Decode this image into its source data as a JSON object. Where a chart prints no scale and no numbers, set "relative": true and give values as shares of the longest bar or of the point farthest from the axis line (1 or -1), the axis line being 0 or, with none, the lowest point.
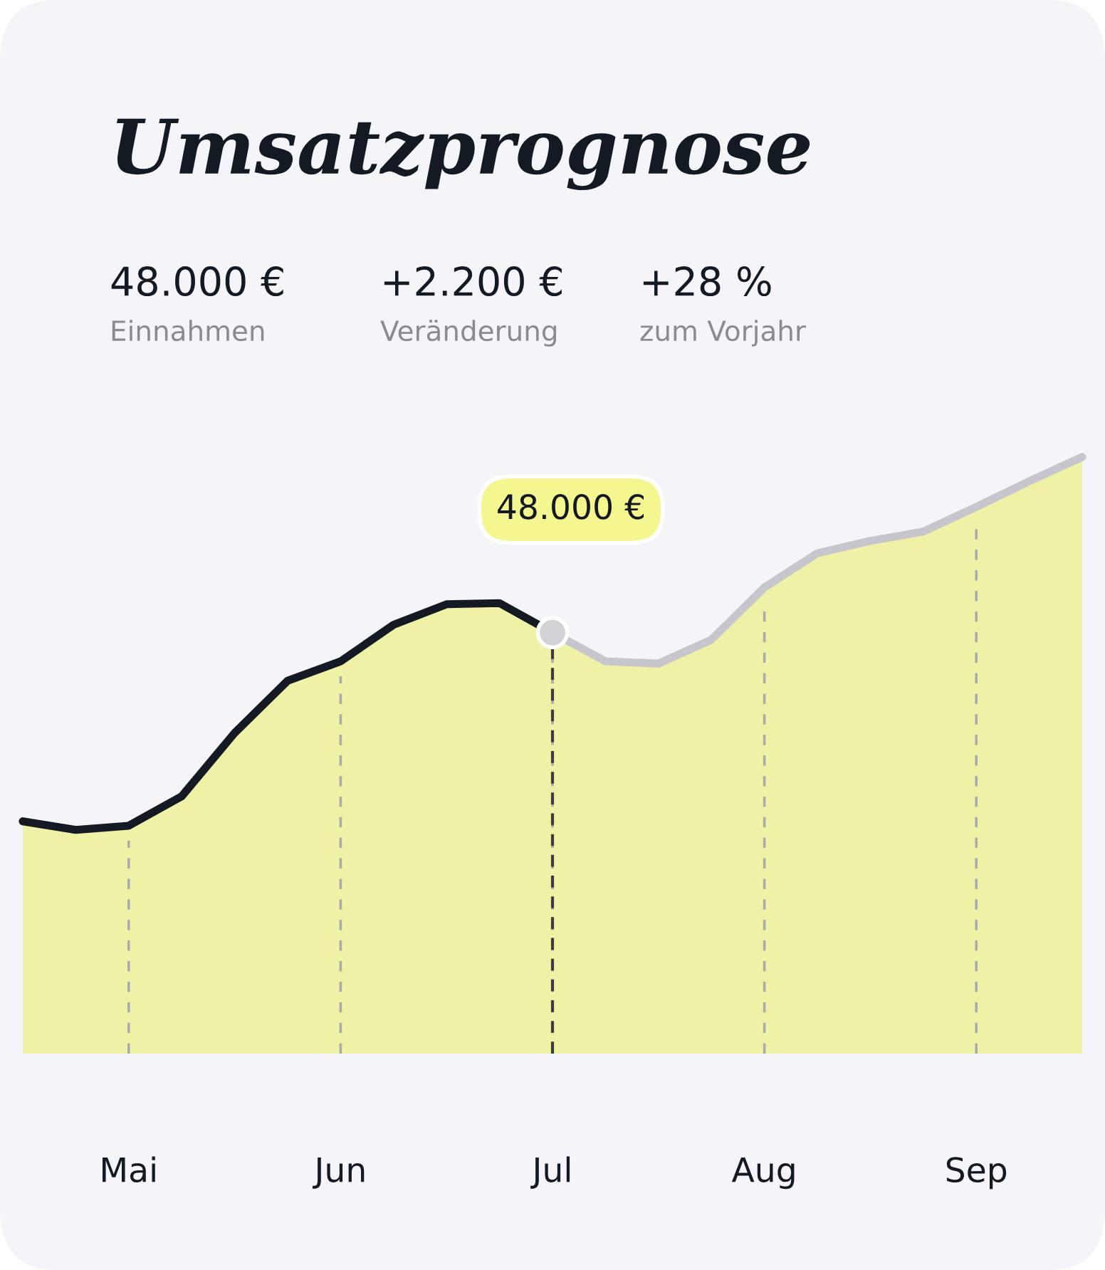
{
  "chart_data": {
    "type": "area",
    "title": "Umsatzprognose",
    "relative": true,
    "grid": "x",
    "legend": false,
    "categories": [
      null,
      null,
      "Mai",
      null,
      null,
      null,
      "Jun",
      null,
      null,
      null,
      "Jul",
      null,
      null,
      null,
      "Aug",
      null,
      null,
      null,
      "Sep",
      null,
      null
    ],
    "annotations": [
      "48.000 €",
      "Einnahmen",
      "+2.200 €",
      "Veränderung",
      "+28 %",
      "zum Vorjahr",
      "48.000 €"
    ],
    "series": [
      {
        "color": "#141a24",
        "values": [
          0.023,
          0,
          0.011,
          0.09,
          0.26,
          0.4,
          0.452,
          0.55,
          0.605,
          0.608,
          0.529,
          null,
          null,
          null,
          null,
          null,
          null,
          null,
          null,
          null,
          null
        ]
      },
      {
        "color": "#c6c6cc",
        "values": [
          null,
          null,
          null,
          null,
          null,
          null,
          null,
          null,
          null,
          null,
          0.529,
          0.452,
          0.446,
          0.51,
          0.65,
          0.742,
          0.775,
          0.8,
          0.866,
          0.935,
          1
        ]
      }
    ]
  }
}
